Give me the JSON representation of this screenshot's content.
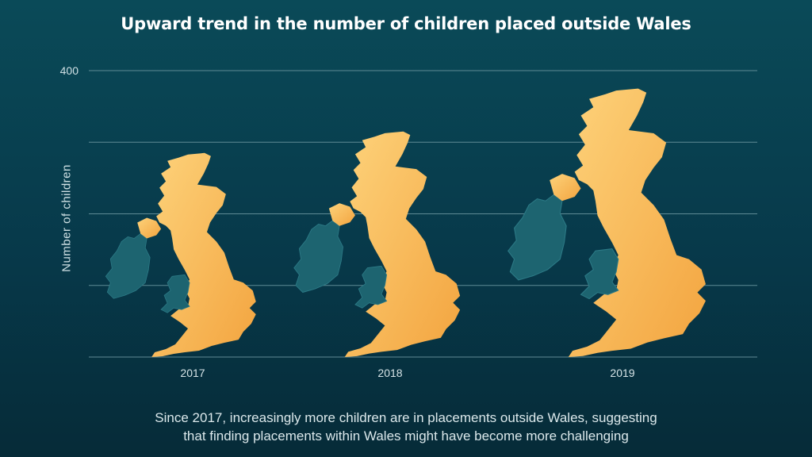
{
  "chart_data": {
    "type": "bar",
    "title": "Upward trend in the number of children placed outside Wales",
    "ylabel": "Number of children",
    "xlabel": "",
    "categories": [
      "2017",
      "2018",
      "2019"
    ],
    "values": [
      285,
      315,
      375
    ],
    "ylim": [
      0,
      400
    ],
    "yticks": [
      400
    ],
    "gridlines": [
      0,
      100,
      200,
      300,
      400
    ],
    "grid": true,
    "mark": "map of the United Kingdom and Ireland (bar-like pictogram, height proportional to value)",
    "colors": {
      "highlight": "#f5ad48",
      "highlight_light": "#fdd27a",
      "other": "#1d6470",
      "grid": "#5f8b95"
    }
  },
  "caption": {
    "line1": "Since 2017, increasingly more children are in placements outside Wales, suggesting",
    "line2": "that finding placements within Wales might have become more challenging"
  }
}
